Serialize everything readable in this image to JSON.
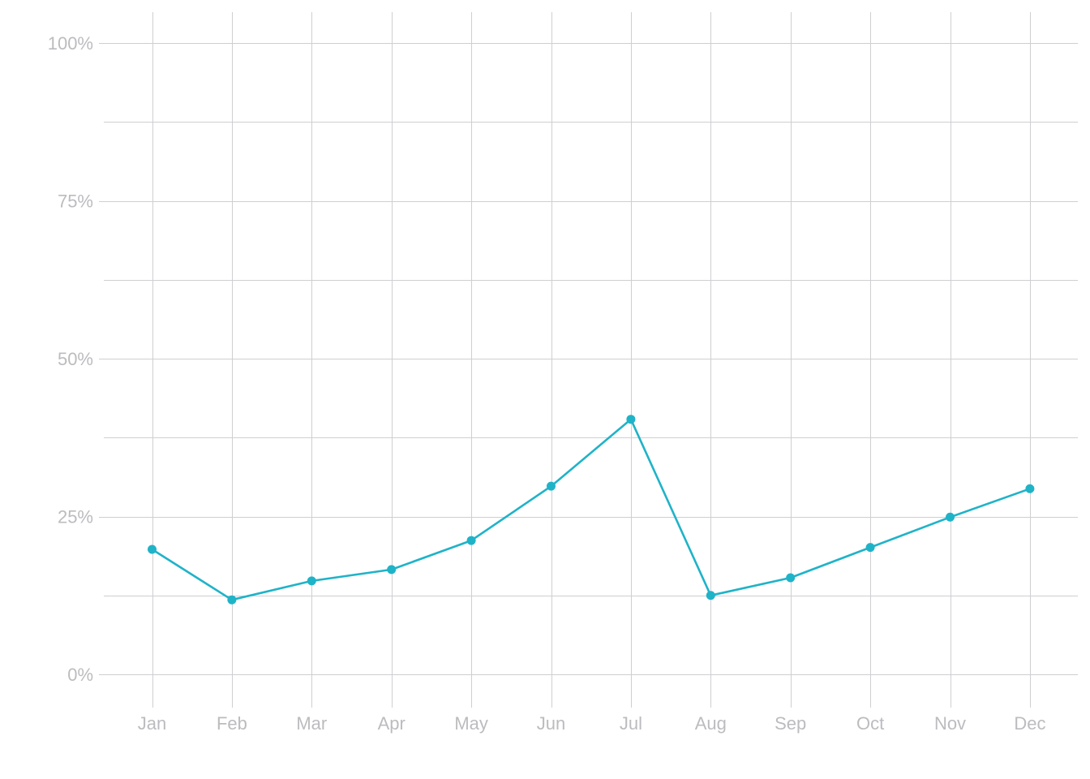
{
  "chart_data": {
    "type": "line",
    "title": "",
    "xlabel": "",
    "ylabel": "",
    "categories": [
      "Jan",
      "Feb",
      "Mar",
      "Apr",
      "May",
      "Jun",
      "Jul",
      "Aug",
      "Sep",
      "Oct",
      "Nov",
      "Dec"
    ],
    "series": [
      {
        "color": "#1fb3c8",
        "values": [
          19.8,
          11.8,
          14.8,
          16.6,
          21.2,
          29.8,
          40.4,
          12.5,
          15.3,
          20.1,
          24.9,
          29.4
        ]
      }
    ],
    "ylim": [
      0,
      100
    ],
    "y_ticks": [
      {
        "value": 0,
        "label": "0%"
      },
      {
        "value": 25,
        "label": "25%"
      },
      {
        "value": 50,
        "label": "50%"
      },
      {
        "value": 75,
        "label": "75%"
      },
      {
        "value": 100,
        "label": "100%"
      }
    ],
    "y_minor_gridlines": [
      12.5,
      37.5,
      62.5,
      87.5
    ],
    "grid": true,
    "legend": "none",
    "colors": {
      "grid": "#cfcfd3",
      "tick_label": "#bcbcc0",
      "background": "#ffffff"
    }
  }
}
